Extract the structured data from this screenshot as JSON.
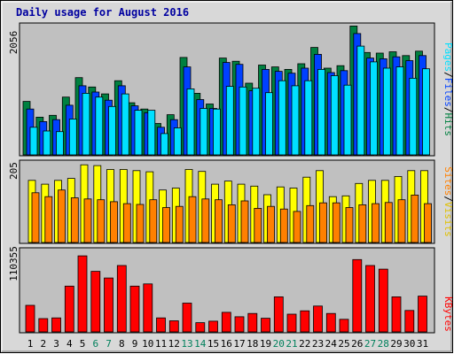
{
  "title": "Daily usage for August 2016",
  "colors": {
    "hits": "#008040",
    "files": "#0040ff",
    "pages": "#00e0ff",
    "visits": "#ffff00",
    "sites": "#ff8000",
    "kbytes": "#ff0000",
    "weekend": "#00805c",
    "title": "#0000a0",
    "plot_bg": "#c0c0c0",
    "frame_bg": "#d8d8d8"
  },
  "sep": "/",
  "chart_data": [
    {
      "type": "bar",
      "panel": "top",
      "max_label": "2056",
      "ylim": [
        0,
        2056
      ],
      "categories": [
        "1",
        "2",
        "3",
        "4",
        "5",
        "6",
        "7",
        "8",
        "9",
        "10",
        "11",
        "12",
        "13",
        "14",
        "15",
        "16",
        "17",
        "18",
        "19",
        "20",
        "21",
        "22",
        "23",
        "24",
        "25",
        "26",
        "27",
        "28",
        "29",
        "30",
        "31"
      ],
      "series": [
        {
          "name": "Hits",
          "color_key": "hits",
          "values": [
            850,
            600,
            630,
            920,
            1230,
            1080,
            970,
            1180,
            830,
            730,
            500,
            640,
            1550,
            980,
            810,
            1540,
            1490,
            1140,
            1430,
            1400,
            1360,
            1450,
            1710,
            1380,
            1420,
            2050,
            1630,
            1620,
            1640,
            1580,
            1650
          ]
        },
        {
          "name": "Files",
          "color_key": "files",
          "values": [
            730,
            530,
            560,
            790,
            1100,
            1000,
            870,
            1100,
            780,
            670,
            440,
            560,
            1400,
            880,
            740,
            1470,
            1440,
            1020,
            1360,
            1330,
            1300,
            1380,
            1600,
            1310,
            1340,
            1930,
            1540,
            1530,
            1560,
            1500,
            1580
          ]
        },
        {
          "name": "Pages",
          "color_key": "pages",
          "values": [
            440,
            380,
            370,
            570,
            980,
            920,
            770,
            970,
            710,
            710,
            340,
            430,
            1050,
            740,
            730,
            1090,
            1080,
            1060,
            990,
            1180,
            1100,
            1180,
            1360,
            1260,
            1110,
            1730,
            1480,
            1380,
            1400,
            1220,
            1370
          ]
        }
      ]
    },
    {
      "type": "bar",
      "panel": "middle",
      "max_label": "205",
      "ylim": [
        0,
        205
      ],
      "categories": [
        "1",
        "2",
        "3",
        "4",
        "5",
        "6",
        "7",
        "8",
        "9",
        "10",
        "11",
        "12",
        "13",
        "14",
        "15",
        "16",
        "17",
        "18",
        "19",
        "20",
        "21",
        "22",
        "23",
        "24",
        "25",
        "26",
        "27",
        "28",
        "29",
        "30",
        "31"
      ],
      "series": [
        {
          "name": "Visits",
          "color_key": "visits",
          "values": [
            160,
            150,
            160,
            165,
            200,
            198,
            188,
            188,
            185,
            182,
            135,
            140,
            188,
            183,
            150,
            158,
            150,
            145,
            123,
            143,
            140,
            168,
            185,
            118,
            120,
            152,
            160,
            160,
            170,
            185,
            185
          ]
        },
        {
          "name": "Sites",
          "color_key": "sites",
          "values": [
            128,
            118,
            135,
            115,
            112,
            110,
            105,
            100,
            98,
            110,
            90,
            93,
            118,
            112,
            110,
            97,
            107,
            88,
            93,
            86,
            80,
            95,
            102,
            102,
            90,
            97,
            100,
            103,
            110,
            122,
            100
          ]
        }
      ]
    },
    {
      "type": "bar",
      "panel": "bottom",
      "max_label": "110355",
      "ylim": [
        0,
        110355
      ],
      "categories": [
        "1",
        "2",
        "3",
        "4",
        "5",
        "6",
        "7",
        "8",
        "9",
        "10",
        "11",
        "12",
        "13",
        "14",
        "15",
        "16",
        "17",
        "18",
        "19",
        "20",
        "21",
        "22",
        "23",
        "24",
        "25",
        "26",
        "27",
        "28",
        "29",
        "30",
        "31"
      ],
      "series": [
        {
          "name": "KBytes",
          "color_key": "kbytes",
          "values": [
            36000,
            18000,
            19000,
            62000,
            103000,
            82000,
            73000,
            90000,
            62000,
            65000,
            19000,
            15000,
            39000,
            12500,
            14500,
            26500,
            20500,
            25000,
            18500,
            47500,
            24000,
            28500,
            35000,
            25000,
            17000,
            98000,
            90000,
            85000,
            47500,
            29000,
            48500
          ]
        }
      ]
    }
  ]
}
